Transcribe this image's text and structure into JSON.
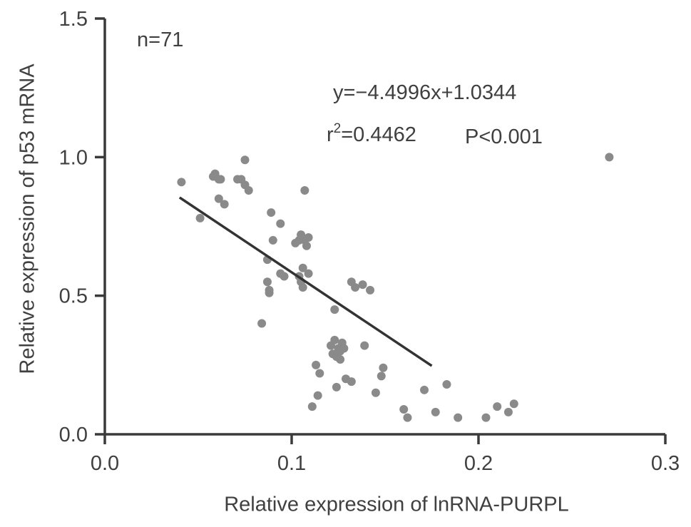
{
  "chart_data": {
    "type": "scatter",
    "xlabel": "Relative expression of lnRNA-PURPL",
    "ylabel": "Relative expression of p53 mRNA",
    "xlim": [
      0.0,
      0.3
    ],
    "ylim": [
      0.0,
      1.5
    ],
    "x_ticks": [
      "0.0",
      "0.1",
      "0.2",
      "0.3"
    ],
    "y_ticks": [
      "0.0",
      "0.5",
      "1.0",
      "1.5"
    ],
    "grid": false,
    "annotations": {
      "n": "n=71",
      "equation": "y=−4.4996x+1.0344",
      "r2_prefix": "r",
      "r2_sup": "2",
      "r2_value": "=0.4462",
      "p_value": "P<0.001"
    },
    "regression": {
      "slope": -4.4996,
      "intercept": 1.0344,
      "x_range": [
        0.04,
        0.175
      ]
    },
    "points": [
      [
        0.041,
        0.91
      ],
      [
        0.051,
        0.78
      ],
      [
        0.058,
        0.93
      ],
      [
        0.059,
        0.94
      ],
      [
        0.061,
        0.92
      ],
      [
        0.062,
        0.92
      ],
      [
        0.061,
        0.85
      ],
      [
        0.064,
        0.83
      ],
      [
        0.071,
        0.92
      ],
      [
        0.073,
        0.92
      ],
      [
        0.075,
        0.99
      ],
      [
        0.075,
        0.9
      ],
      [
        0.077,
        0.88
      ],
      [
        0.084,
        0.4
      ],
      [
        0.087,
        0.63
      ],
      [
        0.087,
        0.55
      ],
      [
        0.088,
        0.52
      ],
      [
        0.088,
        0.51
      ],
      [
        0.089,
        0.8
      ],
      [
        0.09,
        0.7
      ],
      [
        0.094,
        0.76
      ],
      [
        0.094,
        0.58
      ],
      [
        0.096,
        0.57
      ],
      [
        0.102,
        0.69
      ],
      [
        0.104,
        0.7
      ],
      [
        0.105,
        0.72
      ],
      [
        0.104,
        0.57
      ],
      [
        0.105,
        0.55
      ],
      [
        0.106,
        0.53
      ],
      [
        0.106,
        0.6
      ],
      [
        0.107,
        0.7
      ],
      [
        0.108,
        0.68
      ],
      [
        0.107,
        0.88
      ],
      [
        0.109,
        0.71
      ],
      [
        0.109,
        0.58
      ],
      [
        0.111,
        0.1
      ],
      [
        0.113,
        0.25
      ],
      [
        0.114,
        0.14
      ],
      [
        0.115,
        0.22
      ],
      [
        0.121,
        0.32
      ],
      [
        0.122,
        0.29
      ],
      [
        0.123,
        0.34
      ],
      [
        0.123,
        0.45
      ],
      [
        0.124,
        0.28
      ],
      [
        0.124,
        0.17
      ],
      [
        0.125,
        0.31
      ],
      [
        0.126,
        0.27
      ],
      [
        0.127,
        0.33
      ],
      [
        0.128,
        0.31
      ],
      [
        0.129,
        0.2
      ],
      [
        0.132,
        0.55
      ],
      [
        0.132,
        0.19
      ],
      [
        0.138,
        0.54
      ],
      [
        0.139,
        0.32
      ],
      [
        0.142,
        0.52
      ],
      [
        0.145,
        0.15
      ],
      [
        0.148,
        0.21
      ],
      [
        0.149,
        0.24
      ],
      [
        0.16,
        0.09
      ],
      [
        0.162,
        0.06
      ],
      [
        0.171,
        0.16
      ],
      [
        0.177,
        0.08
      ],
      [
        0.183,
        0.18
      ],
      [
        0.189,
        0.06
      ],
      [
        0.204,
        0.06
      ],
      [
        0.21,
        0.1
      ],
      [
        0.216,
        0.08
      ],
      [
        0.219,
        0.11
      ],
      [
        0.27,
        1.0
      ],
      [
        0.126,
        0.3
      ],
      [
        0.134,
        0.53
      ]
    ]
  },
  "colors": {
    "axis": "#3a3a3a",
    "point": "#8a8a8a",
    "line": "#333333"
  }
}
